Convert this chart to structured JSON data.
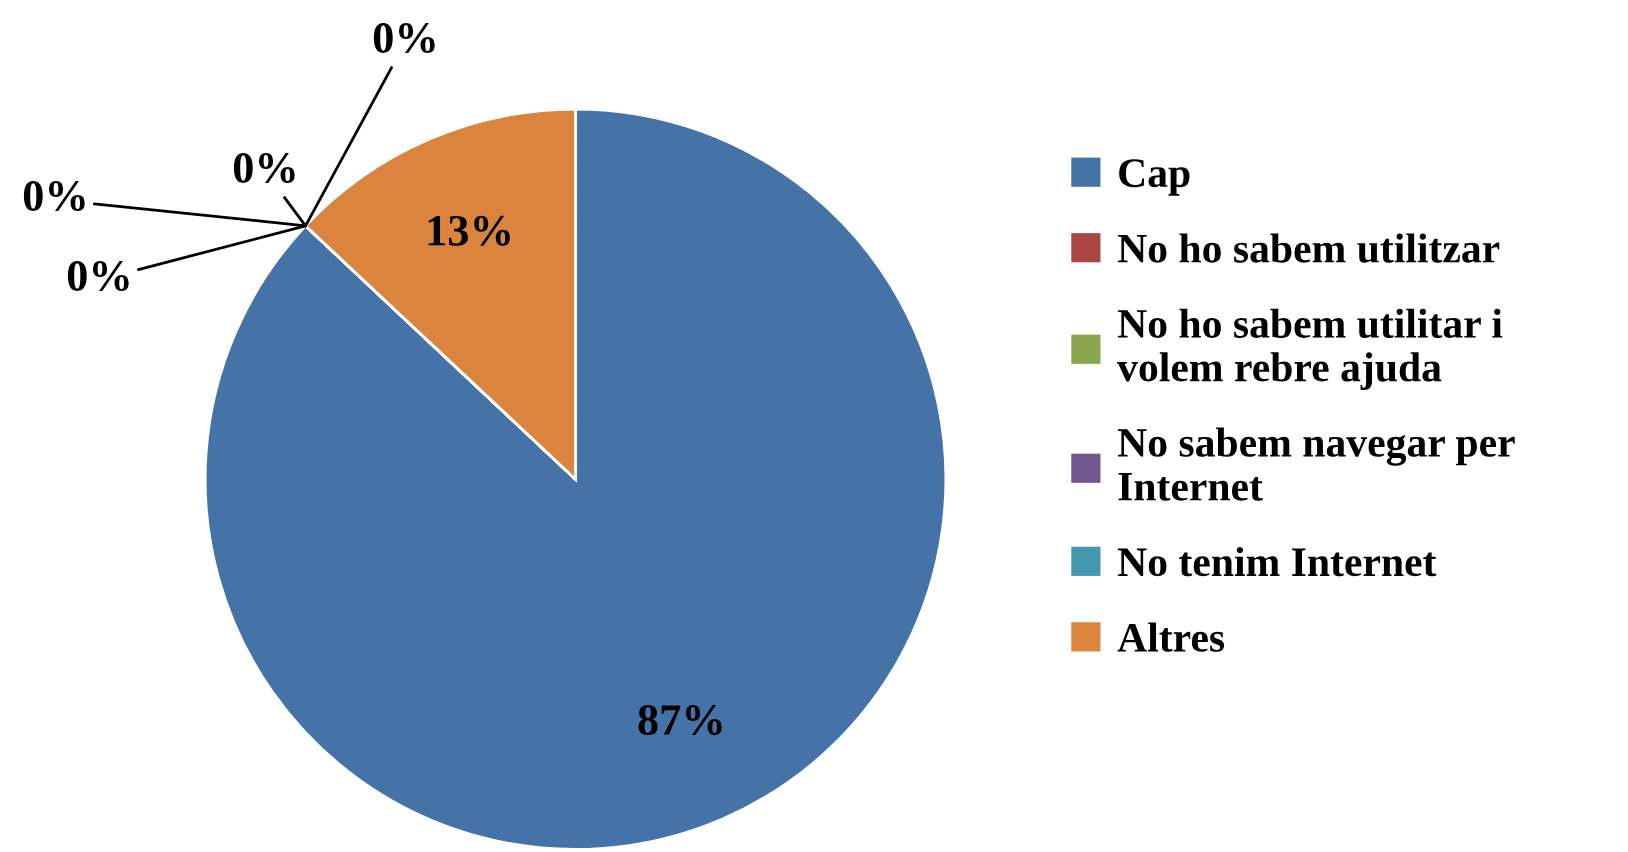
{
  "chart_data": {
    "type": "pie",
    "categories": [
      "Cap",
      "No ho sabem utilitzar",
      "No ho sabem utilitar i\nvolem rebre ajuda",
      "No sabem navegar per\nInternet",
      "No tenim Internet",
      "Altres"
    ],
    "values": [
      87,
      0,
      0,
      0,
      0,
      13
    ],
    "colors": [
      "#4572a7",
      "#aa4643",
      "#89a54e",
      "#71588f",
      "#4198af",
      "#db843d"
    ],
    "value_labels": [
      "87%",
      "0%",
      "0%",
      "0%",
      "0%",
      "13%"
    ],
    "legend": "right"
  }
}
